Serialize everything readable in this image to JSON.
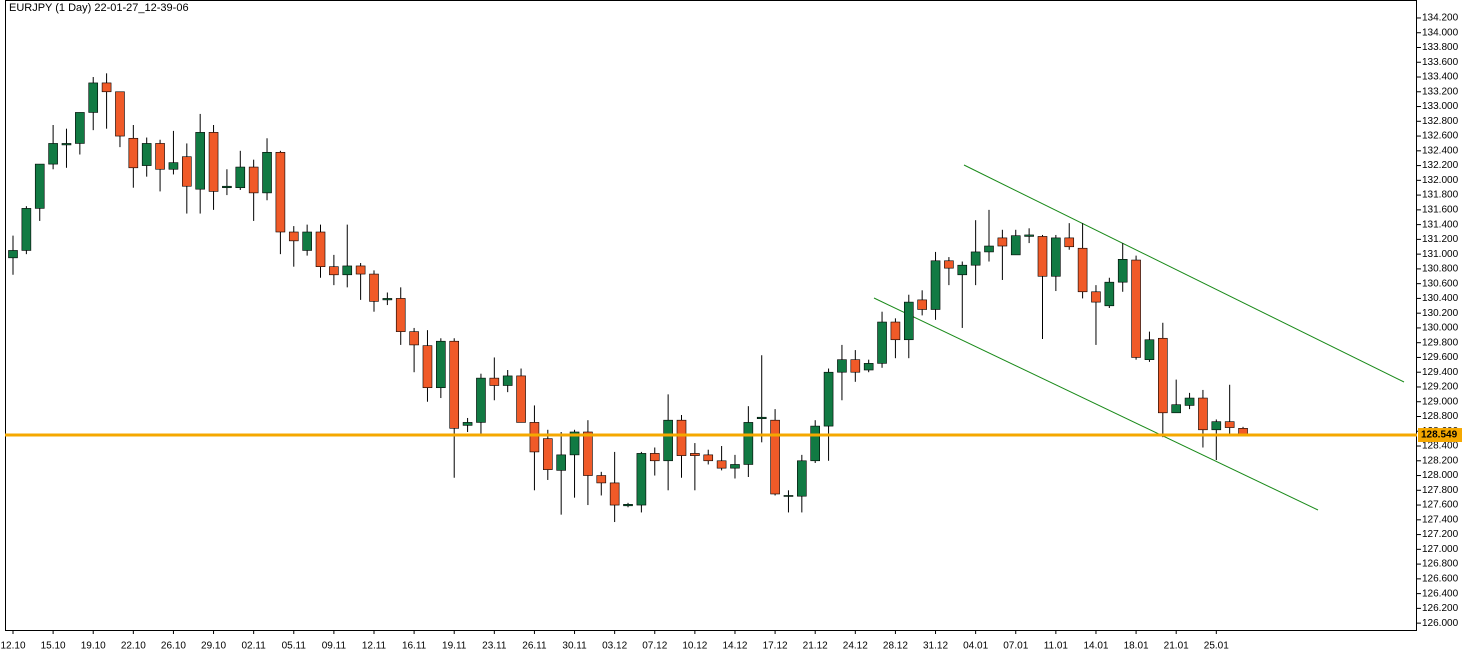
{
  "chart_data": {
    "type": "candlestick",
    "title": "EURJPY (1 Day) 22-01-27_12-39-06",
    "categories": [
      "12.10",
      null,
      null,
      "15.10",
      null,
      null,
      "19.10",
      null,
      null,
      "22.10",
      null,
      null,
      "26.10",
      null,
      null,
      "29.10",
      null,
      null,
      "02.11",
      null,
      null,
      "05.11",
      null,
      null,
      "09.11",
      null,
      null,
      "12.11",
      null,
      null,
      "16.11",
      null,
      null,
      "19.11",
      null,
      null,
      "23.11",
      null,
      null,
      "26.11",
      null,
      null,
      "30.11",
      null,
      null,
      "03.12",
      null,
      null,
      "07.12",
      null,
      null,
      "10.12",
      null,
      null,
      "14.12",
      null,
      null,
      "17.12",
      null,
      null,
      "21.12",
      null,
      null,
      "24.12",
      null,
      null,
      "28.12",
      null,
      null,
      "31.12",
      null,
      null,
      "04.01",
      null,
      null,
      "07.01",
      null,
      null,
      "11.01",
      null,
      null,
      "14.01",
      null,
      null,
      "18.01",
      null,
      null,
      "21.01",
      null,
      null,
      "25.01",
      null,
      null
    ],
    "open": [
      130.95,
      131.05,
      131.62,
      132.22,
      132.48,
      132.5,
      132.92,
      133.32,
      133.2,
      132.57,
      132.2,
      132.5,
      132.15,
      132.32,
      131.88,
      132.65,
      131.9,
      131.9,
      132.18,
      131.83,
      132.38,
      131.3,
      131.05,
      131.3,
      130.83,
      130.72,
      130.84,
      130.73,
      130.38,
      130.4,
      129.95,
      129.76,
      129.19,
      129.82,
      128.68,
      128.72,
      129.32,
      129.22,
      129.35,
      128.72,
      128.5,
      128.07,
      128.28,
      128.59,
      128.0,
      127.9,
      127.59,
      127.6,
      128.3,
      128.2,
      128.75,
      128.3,
      128.28,
      128.2,
      128.1,
      128.15,
      128.77,
      128.75,
      127.72,
      127.72,
      128.2,
      128.67,
      129.4,
      129.57,
      129.43,
      129.52,
      130.08,
      129.84,
      130.38,
      130.25,
      130.91,
      130.72,
      130.85,
      131.03,
      131.22,
      130.99,
      131.24,
      131.24,
      130.7,
      131.22,
      131.08,
      130.49,
      130.3,
      130.62,
      130.92,
      129.57,
      129.86,
      128.85,
      128.95,
      129.05,
      128.62,
      128.73,
      128.64
    ],
    "high": [
      131.25,
      131.65,
      132.22,
      132.75,
      132.7,
      132.92,
      133.4,
      133.45,
      133.2,
      132.75,
      132.58,
      132.55,
      132.67,
      132.5,
      132.9,
      132.75,
      132.15,
      132.4,
      132.28,
      132.57,
      132.4,
      131.38,
      131.4,
      131.4,
      130.99,
      131.4,
      130.88,
      130.78,
      130.48,
      130.55,
      130.0,
      129.97,
      129.86,
      129.86,
      128.78,
      129.38,
      129.6,
      129.43,
      129.45,
      128.95,
      128.62,
      128.59,
      128.62,
      128.75,
      128.05,
      128.32,
      127.63,
      128.32,
      128.38,
      129.1,
      128.82,
      128.44,
      128.35,
      128.4,
      128.28,
      128.94,
      129.63,
      128.9,
      127.8,
      128.28,
      128.75,
      129.45,
      129.77,
      129.7,
      129.57,
      130.22,
      130.13,
      130.45,
      130.51,
      131.03,
      130.96,
      130.9,
      131.46,
      131.6,
      131.33,
      131.33,
      131.35,
      131.26,
      131.26,
      131.42,
      131.42,
      130.58,
      130.68,
      131.15,
      130.98,
      129.95,
      130.07,
      129.3,
      129.12,
      129.16,
      128.76,
      129.23,
      128.66
    ],
    "low": [
      130.72,
      131.0,
      131.45,
      132.15,
      132.17,
      132.35,
      132.68,
      132.7,
      132.45,
      131.9,
      132.05,
      131.85,
      132.08,
      131.55,
      131.55,
      131.6,
      131.8,
      131.87,
      131.45,
      131.73,
      131.0,
      130.83,
      130.98,
      130.68,
      130.58,
      130.55,
      130.38,
      130.22,
      130.31,
      129.77,
      129.4,
      129.0,
      129.05,
      127.97,
      128.59,
      128.53,
      129.02,
      129.13,
      128.72,
      127.8,
      127.94,
      127.47,
      127.7,
      127.6,
      127.73,
      127.37,
      127.57,
      127.5,
      128.0,
      127.8,
      127.97,
      127.8,
      128.15,
      128.07,
      127.96,
      127.98,
      128.45,
      127.73,
      127.5,
      127.5,
      128.17,
      128.2,
      129.02,
      129.27,
      129.4,
      129.46,
      129.59,
      129.59,
      130.17,
      130.11,
      130.58,
      130.0,
      130.58,
      130.9,
      130.65,
      130.99,
      131.15,
      129.85,
      130.5,
      131.06,
      130.4,
      129.77,
      130.27,
      130.49,
      129.57,
      129.54,
      128.52,
      128.85,
      128.9,
      128.38,
      128.21,
      128.54,
      128.54
    ],
    "close": [
      131.05,
      131.62,
      132.22,
      132.5,
      132.5,
      132.92,
      133.32,
      133.2,
      132.6,
      132.17,
      132.5,
      132.15,
      132.24,
      131.92,
      132.65,
      131.85,
      131.92,
      132.18,
      131.83,
      132.38,
      131.3,
      131.18,
      131.3,
      130.83,
      130.72,
      130.84,
      130.73,
      130.36,
      130.4,
      129.95,
      129.77,
      129.19,
      129.82,
      128.64,
      128.72,
      129.32,
      129.22,
      129.35,
      128.72,
      128.32,
      128.08,
      128.28,
      128.59,
      128.0,
      127.9,
      127.6,
      127.61,
      128.3,
      128.2,
      128.75,
      128.27,
      128.27,
      128.2,
      128.1,
      128.15,
      128.72,
      128.79,
      127.75,
      127.73,
      128.2,
      128.67,
      129.4,
      129.57,
      129.4,
      129.52,
      130.08,
      129.84,
      130.35,
      130.25,
      130.91,
      130.81,
      130.85,
      131.03,
      131.11,
      131.11,
      131.25,
      131.26,
      130.7,
      131.22,
      131.1,
      130.49,
      130.35,
      130.62,
      130.93,
      129.6,
      129.84,
      128.85,
      128.96,
      129.05,
      128.62,
      128.73,
      128.65,
      128.55
    ],
    "up_color": "#117a43",
    "down_color": "#f05a28",
    "current_price": {
      "value": 128.549,
      "label": "128.549"
    },
    "current_price_color": "#f5a800",
    "ylim": [
      125.907,
      134.281
    ],
    "yticks": [
      {
        "value": 126.0,
        "label": "126.000"
      },
      {
        "value": 126.2,
        "label": "126.200"
      },
      {
        "value": 126.4,
        "label": "126.400"
      },
      {
        "value": 126.6,
        "label": "126.600"
      },
      {
        "value": 126.8,
        "label": "126.800"
      },
      {
        "value": 127.0,
        "label": "127.000"
      },
      {
        "value": 127.2,
        "label": "127.200"
      },
      {
        "value": 127.4,
        "label": "127.400"
      },
      {
        "value": 127.6,
        "label": "127.600"
      },
      {
        "value": 127.8,
        "label": "127.800"
      },
      {
        "value": 128.0,
        "label": "128.000"
      },
      {
        "value": 128.2,
        "label": "128.200"
      },
      {
        "value": 128.4,
        "label": "128.400"
      },
      {
        "value": 128.6,
        "label": "128.600"
      },
      {
        "value": 128.8,
        "label": "128.800"
      },
      {
        "value": 129.0,
        "label": "129.000"
      },
      {
        "value": 129.2,
        "label": "129.200"
      },
      {
        "value": 129.4,
        "label": "129.400"
      },
      {
        "value": 129.6,
        "label": "129.600"
      },
      {
        "value": 129.8,
        "label": "129.800"
      },
      {
        "value": 130.0,
        "label": "130.000"
      },
      {
        "value": 130.2,
        "label": "130.200"
      },
      {
        "value": 130.4,
        "label": "130.400"
      },
      {
        "value": 130.6,
        "label": "130.600"
      },
      {
        "value": 130.8,
        "label": "130.800"
      },
      {
        "value": 131.0,
        "label": "131.000"
      },
      {
        "value": 131.2,
        "label": "131.200"
      },
      {
        "value": 131.4,
        "label": "131.400"
      },
      {
        "value": 131.6,
        "label": "131.600"
      },
      {
        "value": 131.8,
        "label": "131.800"
      },
      {
        "value": 132.0,
        "label": "132.000"
      },
      {
        "value": 132.2,
        "label": "132.200"
      },
      {
        "value": 132.4,
        "label": "132.400"
      },
      {
        "value": 132.6,
        "label": "132.600"
      },
      {
        "value": 132.8,
        "label": "132.800"
      },
      {
        "value": 133.0,
        "label": "133.000"
      },
      {
        "value": 133.2,
        "label": "133.200"
      },
      {
        "value": 133.4,
        "label": "133.400"
      },
      {
        "value": 133.6,
        "label": "133.600"
      },
      {
        "value": 133.8,
        "label": "133.800"
      },
      {
        "value": 134.0,
        "label": "134.000"
      },
      {
        "value": 134.2,
        "label": "134.200"
      }
    ]
  }
}
